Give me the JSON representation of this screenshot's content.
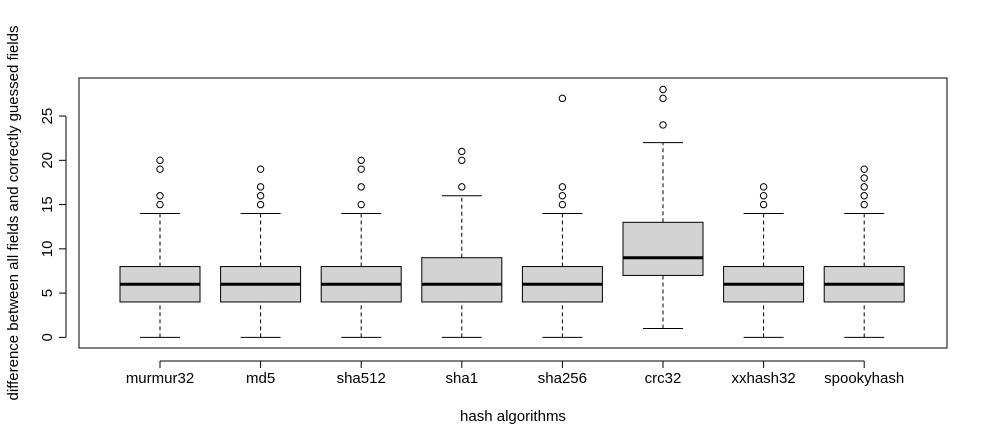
{
  "chart_data": {
    "type": "boxplot",
    "title": "",
    "xlabel": "hash algorithms",
    "ylabel": "difference between all fields and correctly guessed fields",
    "ylim": [
      -1.2,
      29.3
    ],
    "yticks": [
      0,
      5,
      10,
      15,
      20,
      25
    ],
    "grid": false,
    "box_fill": "#d3d3d3",
    "categories": [
      "murmur32",
      "md5",
      "sha512",
      "sha1",
      "sha256",
      "crc32",
      "xxhash32",
      "spookyhash"
    ],
    "boxes": [
      {
        "name": "murmur32",
        "whisker_low": 0,
        "q1": 4,
        "median": 6,
        "q3": 8,
        "whisker_high": 14,
        "outliers": [
          15,
          16,
          19,
          20
        ]
      },
      {
        "name": "md5",
        "whisker_low": 0,
        "q1": 4,
        "median": 6,
        "q3": 8,
        "whisker_high": 14,
        "outliers": [
          15,
          16,
          17,
          19
        ]
      },
      {
        "name": "sha512",
        "whisker_low": 0,
        "q1": 4,
        "median": 6,
        "q3": 8,
        "whisker_high": 14,
        "outliers": [
          15,
          17,
          19,
          20
        ]
      },
      {
        "name": "sha1",
        "whisker_low": 0,
        "q1": 4,
        "median": 6,
        "q3": 9,
        "whisker_high": 16,
        "outliers": [
          17,
          20,
          21
        ]
      },
      {
        "name": "sha256",
        "whisker_low": 0,
        "q1": 4,
        "median": 6,
        "q3": 8,
        "whisker_high": 14,
        "outliers": [
          15,
          16,
          17,
          27
        ]
      },
      {
        "name": "crc32",
        "whisker_low": 1,
        "q1": 7,
        "median": 9,
        "q3": 13,
        "whisker_high": 22,
        "outliers": [
          24,
          27,
          28
        ]
      },
      {
        "name": "xxhash32",
        "whisker_low": 0,
        "q1": 4,
        "median": 6,
        "q3": 8,
        "whisker_high": 14,
        "outliers": [
          15,
          16,
          17
        ]
      },
      {
        "name": "spookyhash",
        "whisker_low": 0,
        "q1": 4,
        "median": 6,
        "q3": 8,
        "whisker_high": 14,
        "outliers": [
          15,
          16,
          17,
          18,
          19
        ]
      }
    ]
  }
}
